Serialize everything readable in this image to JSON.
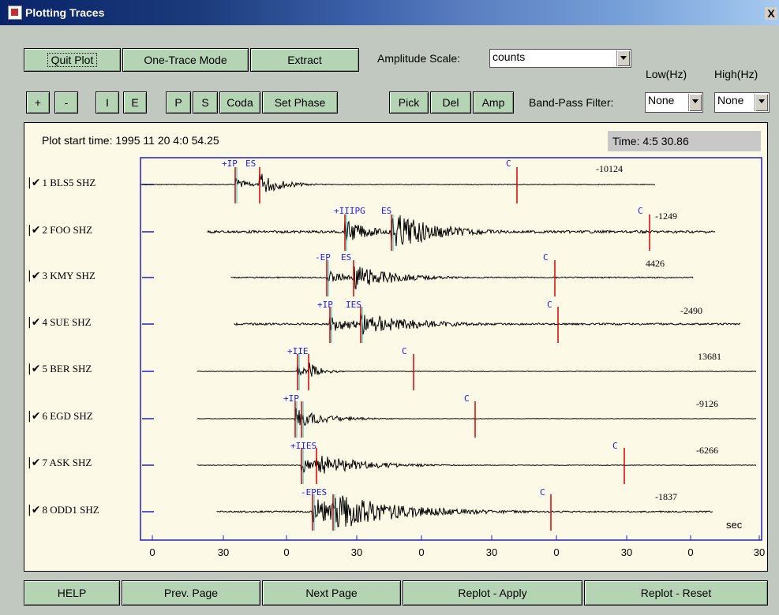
{
  "window": {
    "title": "Plotting Traces",
    "close": "X"
  },
  "toolbar1": {
    "quit_plot": "Quit Plot",
    "one_trace": "One-Trace Mode",
    "extract": "Extract",
    "amp_label": "Amplitude Scale:",
    "amp_value": "counts"
  },
  "toolbar2": {
    "plus": "+",
    "minus": "-",
    "i": "I",
    "e": "E",
    "p": "P",
    "s": "S",
    "coda": "Coda",
    "set_phase": "Set Phase",
    "pick": "Pick",
    "del": "Del",
    "amp": "Amp",
    "bp_label": "Band-Pass Filter:",
    "low_label": "Low(Hz)",
    "high_label": "High(Hz)",
    "low_value": "None",
    "high_value": "None"
  },
  "plot": {
    "start_time": "Plot start time: 1995 11 20  4:0 54.25",
    "cursor_time": "Time: 4:5  30.86",
    "sec_label": "sec",
    "x_ticks": [
      "0",
      "30",
      "0",
      "30",
      "0",
      "30",
      "0",
      "30",
      "0",
      "30"
    ]
  },
  "stations": [
    {
      "label": "1 BLS5  SHZ",
      "amp": "-10124",
      "picks": [
        "+IP",
        "ES"
      ],
      "coda": "C"
    },
    {
      "label": "2 FOO  SHZ",
      "amp": "-1249",
      "picks": [
        "+IIIPG",
        "ES"
      ],
      "coda": "C"
    },
    {
      "label": "3 KMY  SHZ",
      "amp": "4426",
      "picks": [
        "-EP",
        "ES"
      ],
      "coda": "C"
    },
    {
      "label": "4 SUE  SHZ",
      "amp": "-2490",
      "picks": [
        "+IP",
        "IES"
      ],
      "coda": "C"
    },
    {
      "label": "5 BER  SHZ",
      "amp": "13681",
      "picks": [
        "+IIE"
      ],
      "coda": "C"
    },
    {
      "label": "6 EGD  SHZ",
      "amp": "-9126",
      "picks": [
        "+IP"
      ],
      "coda": "C"
    },
    {
      "label": "7 ASK  SHZ",
      "amp": "-6266",
      "picks": [
        "+IIES"
      ],
      "coda": "C"
    },
    {
      "label": "8 ODD1  SHZ",
      "amp": "-1837",
      "picks": [
        "-EPES"
      ],
      "coda": "C"
    }
  ],
  "bottom": {
    "help": "HELP",
    "prev": "Prev. Page",
    "next": "Next Page",
    "apply": "Replot - Apply",
    "reset": "Replot -  Reset"
  },
  "colors": {
    "pick_blue": "#1a1aff",
    "pick_red": "#e00000",
    "pick_cyan": "#00cccc",
    "frame_blue": "#2020c0"
  }
}
